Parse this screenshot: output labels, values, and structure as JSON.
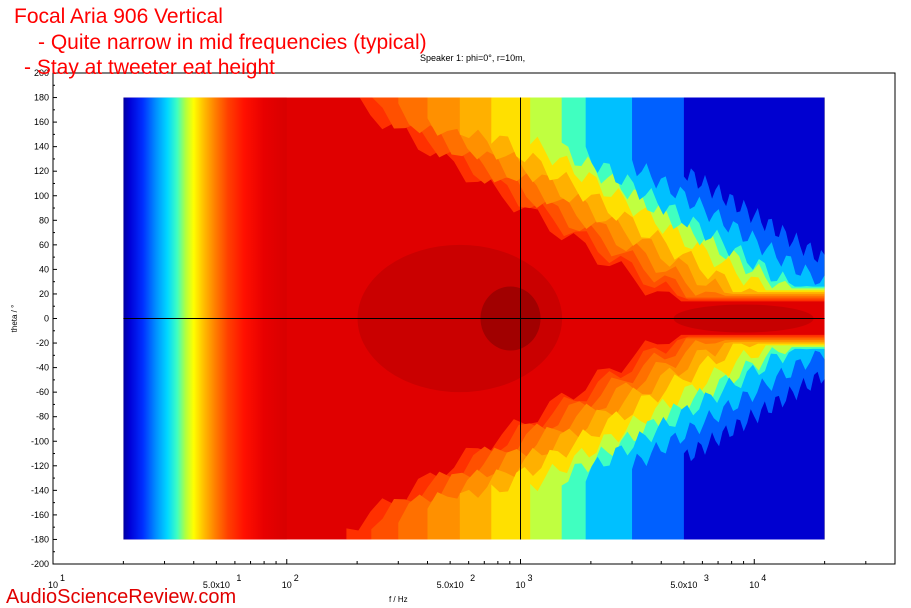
{
  "annotations": {
    "title": "Focal Aria 906 Vertical",
    "note1": "- Quite narrow in mid frequencies (typical)",
    "note2": "- Stay at tweeter eat height",
    "watermark": "AudioScienceReview.com"
  },
  "chart_data": {
    "type": "heatmap",
    "title": "Speaker 1: phi=0°, r=10m,",
    "xlabel": "f / Hz",
    "ylabel": "theta / °",
    "x_scale": "log",
    "xlim": [
      10,
      40000
    ],
    "ylim": [
      -200,
      200
    ],
    "data_extent": {
      "x": [
        20,
        20000
      ],
      "y": [
        -180,
        180
      ]
    },
    "x_ticks": [
      {
        "value": 10,
        "label": "10",
        "sup": "1"
      },
      {
        "value": 50,
        "label": "5.0x10",
        "sup": "1"
      },
      {
        "value": 100,
        "label": "10",
        "sup": "2"
      },
      {
        "value": 500,
        "label": "5.0x10",
        "sup": "2"
      },
      {
        "value": 1000,
        "label": "10",
        "sup": "3"
      },
      {
        "value": 5000,
        "label": "5.0x10",
        "sup": "3"
      },
      {
        "value": 10000,
        "label": "10",
        "sup": "4"
      }
    ],
    "y_ticks": [
      "200",
      "180",
      "160",
      "140",
      "120",
      "100",
      "80",
      "60",
      "40",
      "20",
      "0",
      "-20",
      "-40",
      "-60",
      "-80",
      "-100",
      "-120",
      "-140",
      "-160",
      "-180",
      "-200"
    ],
    "crosshair": {
      "x": 1000,
      "y": 0
    },
    "colors": {
      "low": "#0000b4",
      "mid": "#ffff00",
      "high": "#ff0000",
      "peak": "#a00000",
      "axis": "#000000"
    }
  }
}
